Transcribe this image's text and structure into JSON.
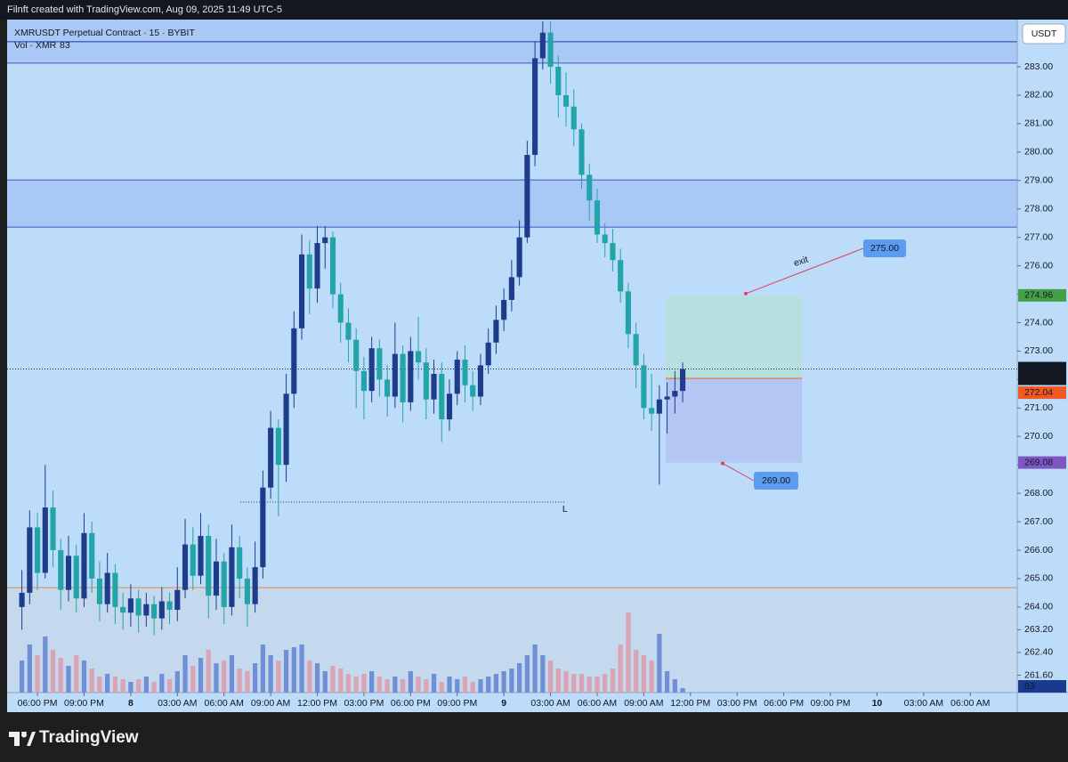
{
  "header": {
    "caption": "Filnft created with TradingView.com, Aug 09, 2025 11:49 UTC-5"
  },
  "footer": {
    "brand": "TradingView"
  },
  "chart_data": {
    "type": "candlestick",
    "title": "XMRUSDT Perpetual Contract · 15 · BYBIT",
    "currency": "USDT",
    "up_color": "#1e3c8c",
    "down_color": "#22a4a8",
    "background": "#bcdcfa",
    "x": [
      17.0,
      17.5,
      18.0,
      18.5,
      19.0,
      19.5,
      20.0,
      20.5,
      21.0,
      21.5,
      22.0,
      22.5,
      23.0,
      23.5,
      24.0,
      24.5,
      25.0,
      25.5,
      26.0,
      26.5,
      27.0,
      27.5,
      28.0,
      28.5,
      29.0,
      29.5,
      30.0,
      30.5,
      31.0,
      31.5,
      32.0,
      32.5,
      33.0,
      33.5,
      34.0,
      34.5,
      35.0,
      35.5,
      36.0,
      36.5,
      37.0,
      37.5,
      38.0,
      38.5,
      39.0,
      39.5,
      40.0,
      40.5,
      41.0,
      41.5,
      42.0,
      42.5,
      43.0,
      43.5,
      44.0,
      44.5,
      45.0,
      45.5,
      46.0,
      46.5,
      47.0,
      47.5,
      48.0,
      48.5,
      49.0,
      49.5,
      50.0,
      50.5,
      51.0,
      51.5,
      52.0,
      52.5,
      53.0,
      53.5,
      54.0,
      54.5,
      55.0,
      55.5,
      56.0,
      56.5,
      57.0,
      57.5,
      58.0,
      58.5,
      59.0,
      59.5
    ],
    "open": [
      264.0,
      264.5,
      266.8,
      265.2,
      267.5,
      266.0,
      264.6,
      265.8,
      264.3,
      266.6,
      265.0,
      264.1,
      265.2,
      264.0,
      263.8,
      264.3,
      263.7,
      264.1,
      263.6,
      264.2,
      263.9,
      264.6,
      266.2,
      265.1,
      266.5,
      264.4,
      265.6,
      264.0,
      266.1,
      265.0,
      264.1,
      265.4,
      268.2,
      270.3,
      269.0,
      271.5,
      273.8,
      276.4,
      275.2,
      276.8,
      277.0,
      275.0,
      274.0,
      273.4,
      272.3,
      271.6,
      273.1,
      272.0,
      271.4,
      272.9,
      271.2,
      273.0,
      272.6,
      271.3,
      272.2,
      270.6,
      271.5,
      272.7,
      271.8,
      271.4,
      272.5,
      273.3,
      274.1,
      274.8,
      275.6,
      277.0,
      279.9,
      283.3,
      284.2,
      283.0,
      282.0,
      281.6,
      280.8,
      279.2,
      278.3,
      277.1,
      276.8,
      276.2,
      275.1,
      273.6,
      272.5,
      271.0,
      270.8,
      271.3,
      271.4,
      271.6
    ],
    "high": [
      265.3,
      267.4,
      267.3,
      269.0,
      268.1,
      266.4,
      266.5,
      266.2,
      267.3,
      267.0,
      265.6,
      265.9,
      265.5,
      264.5,
      264.8,
      264.6,
      264.5,
      264.4,
      264.7,
      264.5,
      265.4,
      267.1,
      266.8,
      267.3,
      266.9,
      266.4,
      265.9,
      266.9,
      266.5,
      265.4,
      266.3,
      268.8,
      270.9,
      270.6,
      272.2,
      274.4,
      277.1,
      276.9,
      277.4,
      277.4,
      277.2,
      275.4,
      274.5,
      273.8,
      272.8,
      273.5,
      273.4,
      272.5,
      274.0,
      273.2,
      273.5,
      274.2,
      273.1,
      272.7,
      272.6,
      272.0,
      273.0,
      273.2,
      272.3,
      272.9,
      273.8,
      274.6,
      275.2,
      276.2,
      277.6,
      280.4,
      283.9,
      284.6,
      284.6,
      283.4,
      282.8,
      282.2,
      281.0,
      279.6,
      278.7,
      277.5,
      277.3,
      276.6,
      275.4,
      274.0,
      272.9,
      272.2,
      271.8,
      271.9,
      272.3,
      272.6
    ],
    "low": [
      263.2,
      264.1,
      264.6,
      265.0,
      265.4,
      263.9,
      264.2,
      263.8,
      264.0,
      264.5,
      263.5,
      263.8,
      263.4,
      263.2,
      263.3,
      263.1,
      263.3,
      263.0,
      263.2,
      263.4,
      263.5,
      264.3,
      264.6,
      264.8,
      263.6,
      263.9,
      263.4,
      263.7,
      264.3,
      263.3,
      263.8,
      265.0,
      267.8,
      267.2,
      268.4,
      271.0,
      273.4,
      274.3,
      274.7,
      275.9,
      274.5,
      273.3,
      272.6,
      271.0,
      270.6,
      271.2,
      271.4,
      270.7,
      271.0,
      270.5,
      270.9,
      272.0,
      270.6,
      270.8,
      269.8,
      270.2,
      271.1,
      271.2,
      270.9,
      271.1,
      272.2,
      272.9,
      273.7,
      274.4,
      275.3,
      276.8,
      279.5,
      282.9,
      282.4,
      281.2,
      280.9,
      280.2,
      278.7,
      277.6,
      276.8,
      276.3,
      275.8,
      274.7,
      273.1,
      271.7,
      270.6,
      270.2,
      268.3,
      270.1,
      270.8,
      271.2
    ],
    "close": [
      264.5,
      266.8,
      265.2,
      267.5,
      266.0,
      264.6,
      265.8,
      264.3,
      266.6,
      265.0,
      264.1,
      265.2,
      264.0,
      263.8,
      264.3,
      263.7,
      264.1,
      263.6,
      264.2,
      263.9,
      264.6,
      266.2,
      265.1,
      266.5,
      264.4,
      265.6,
      264.0,
      266.1,
      265.0,
      264.1,
      265.4,
      268.2,
      270.3,
      269.0,
      271.5,
      273.8,
      276.4,
      275.2,
      276.8,
      277.0,
      275.0,
      274.0,
      273.4,
      272.3,
      271.6,
      273.1,
      272.0,
      271.4,
      272.9,
      271.2,
      273.0,
      272.6,
      271.3,
      272.2,
      270.6,
      271.5,
      272.7,
      271.8,
      271.4,
      272.5,
      273.3,
      274.1,
      274.8,
      275.6,
      277.0,
      279.9,
      283.3,
      284.2,
      283.0,
      282.0,
      281.6,
      280.8,
      279.2,
      278.3,
      277.1,
      276.8,
      276.2,
      275.1,
      273.6,
      272.5,
      271.0,
      270.8,
      271.3,
      271.4,
      271.6,
      272.37
    ],
    "volume": {
      "name": "Vol · XMR",
      "up_color": "#6f90d6",
      "down_color": "#dba4b4",
      "ylim": [
        0,
        4000
      ],
      "values": [
        600,
        900,
        700,
        1050,
        800,
        650,
        500,
        700,
        600,
        450,
        300,
        350,
        300,
        250,
        200,
        250,
        300,
        200,
        350,
        250,
        400,
        700,
        500,
        650,
        800,
        550,
        600,
        700,
        450,
        400,
        550,
        900,
        700,
        600,
        800,
        850,
        900,
        600,
        550,
        400,
        500,
        450,
        350,
        300,
        350,
        400,
        300,
        250,
        300,
        250,
        400,
        300,
        250,
        350,
        200,
        300,
        250,
        300,
        200,
        250,
        300,
        350,
        400,
        450,
        550,
        700,
        900,
        700,
        600,
        450,
        400,
        350,
        350,
        300,
        300,
        350,
        450,
        900,
        1500,
        800,
        700,
        600,
        1100,
        400,
        250,
        83
      ]
    },
    "xlim": [
      16.05,
      81.02
    ],
    "xticks": [
      {
        "value": 18,
        "label": "06:00 PM"
      },
      {
        "value": 21,
        "label": "09:00 PM"
      },
      {
        "value": 24,
        "label": "8"
      },
      {
        "value": 27,
        "label": "03:00 AM"
      },
      {
        "value": 30,
        "label": "06:00 AM"
      },
      {
        "value": 33,
        "label": "09:00 AM"
      },
      {
        "value": 36,
        "label": "12:00 PM"
      },
      {
        "value": 39,
        "label": "03:00 PM"
      },
      {
        "value": 42,
        "label": "06:00 PM"
      },
      {
        "value": 45,
        "label": "09:00 PM"
      },
      {
        "value": 48,
        "label": "9"
      },
      {
        "value": 51,
        "label": "03:00 AM"
      },
      {
        "value": 54,
        "label": "06:00 AM"
      },
      {
        "value": 57,
        "label": "09:00 AM"
      },
      {
        "value": 60,
        "label": "12:00 PM"
      },
      {
        "value": 63,
        "label": "03:00 PM"
      },
      {
        "value": 66,
        "label": "06:00 PM"
      },
      {
        "value": 69,
        "label": "09:00 PM"
      },
      {
        "value": 72,
        "label": "10"
      },
      {
        "value": 75,
        "label": "03:00 AM"
      },
      {
        "value": 78,
        "label": "06:00 AM"
      }
    ],
    "ylim": [
      260.99,
      284.66
    ],
    "yticks": [
      {
        "value": 283,
        "label": "283.00"
      },
      {
        "value": 282,
        "label": "282.00"
      },
      {
        "value": 281,
        "label": "281.00"
      },
      {
        "value": 280,
        "label": "280.00"
      },
      {
        "value": 279,
        "label": "279.00"
      },
      {
        "value": 278,
        "label": "278.00"
      },
      {
        "value": 277,
        "label": "277.00"
      },
      {
        "value": 276,
        "label": "276.00"
      },
      {
        "value": 275,
        "label": "275.00"
      },
      {
        "value": 274,
        "label": "274.00"
      },
      {
        "value": 273,
        "label": "273.00"
      },
      {
        "value": 272,
        "label": "272.00"
      },
      {
        "value": 271,
        "label": "271.00"
      },
      {
        "value": 270,
        "label": "270.00"
      },
      {
        "value": 269,
        "label": "269.00"
      },
      {
        "value": 268,
        "label": "268.00"
      },
      {
        "value": 267,
        "label": "267.00"
      },
      {
        "value": 266,
        "label": "266.00"
      },
      {
        "value": 265,
        "label": "265.00"
      },
      {
        "value": 264,
        "label": "264.00"
      },
      {
        "value": 263.2,
        "label": "263.20"
      },
      {
        "value": 262.4,
        "label": "262.40"
      },
      {
        "value": 261.6,
        "label": "261.60"
      }
    ],
    "zones": [
      {
        "low": 283.13,
        "high": 284.66,
        "color": "#a7c4f4",
        "line_color": "#3d55c8"
      },
      {
        "low": 277.36,
        "high": 279.02,
        "color": "#a7c4f4",
        "line_color": "#3d55c8"
      },
      {
        "low": 260.99,
        "high": 264.68,
        "color": "#c5d8ea",
        "line_color": "#e08a4a"
      }
    ],
    "levels": [
      {
        "value": 283.88,
        "color": "#1f3aa8"
      }
    ],
    "marker_line": {
      "value": 267.69,
      "x_range": [
        31.05,
        51.99
      ],
      "label": "L"
    },
    "last_price": {
      "countdown": "10:42"
    },
    "position": {
      "entry": 272.04,
      "target": 274.96,
      "stop": 269.08,
      "x_range": [
        58.41,
        67.17
      ],
      "target_label": "275.00",
      "stop_label": "269.00",
      "note": "exit"
    }
  }
}
